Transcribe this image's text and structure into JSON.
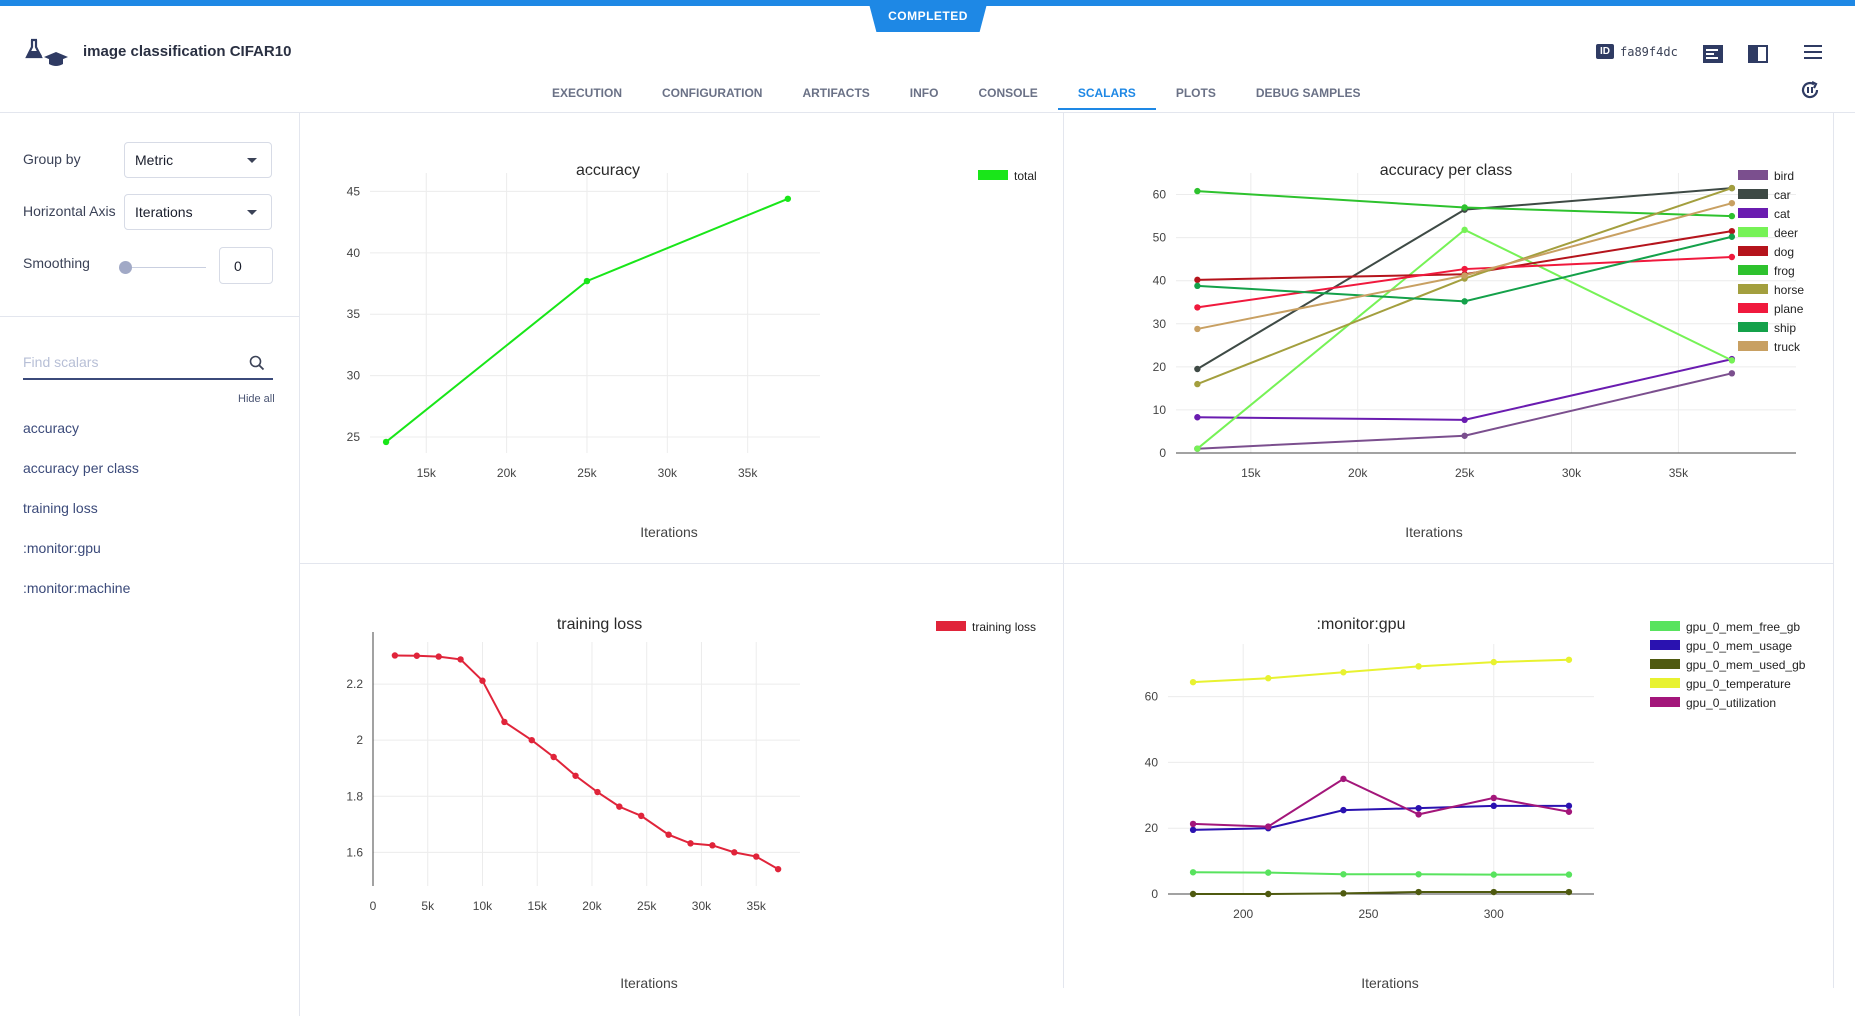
{
  "header": {
    "status": "COMPLETED",
    "title": "image classification CIFAR10",
    "id_label": "ID",
    "id_value": "fa89f4dc"
  },
  "tabs": [
    {
      "label": "EXECUTION"
    },
    {
      "label": "CONFIGURATION"
    },
    {
      "label": "ARTIFACTS"
    },
    {
      "label": "INFO"
    },
    {
      "label": "CONSOLE"
    },
    {
      "label": "SCALARS",
      "active": true
    },
    {
      "label": "PLOTS"
    },
    {
      "label": "DEBUG SAMPLES"
    }
  ],
  "sidebar": {
    "group_by_label": "Group by",
    "group_by_value": "Metric",
    "axis_label": "Horizontal Axis",
    "axis_value": "Iterations",
    "smoothing_label": "Smoothing",
    "smoothing_value": "0",
    "search_placeholder": "Find scalars",
    "hide_all": "Hide all",
    "scalars": [
      "accuracy",
      "accuracy per class",
      "training loss",
      ":monitor:gpu",
      ":monitor:machine"
    ]
  },
  "chart_data": [
    {
      "type": "line",
      "title": "accuracy",
      "xlabel": "Iterations",
      "xlim": [
        11500,
        39500
      ],
      "ylim": [
        23.7,
        46.5
      ],
      "xticks": [
        15000,
        20000,
        25000,
        30000,
        35000
      ],
      "xtick_labels": [
        "15k",
        "20k",
        "25k",
        "30k",
        "35k"
      ],
      "yticks": [
        25,
        30,
        35,
        40,
        45
      ],
      "ytick_labels": [
        "25",
        "30",
        "35",
        "40",
        "45"
      ],
      "grid": true,
      "legend_position": "top-right",
      "series": [
        {
          "name": "total",
          "color": "#19e619",
          "x": [
            12500,
            25000,
            37500
          ],
          "y": [
            24.6,
            37.7,
            44.4
          ]
        }
      ]
    },
    {
      "type": "line",
      "title": "accuracy per class",
      "xlabel": "Iterations",
      "xlim": [
        11500,
        40500
      ],
      "ylim": [
        0,
        65
      ],
      "xticks": [
        15000,
        20000,
        25000,
        30000,
        35000
      ],
      "xtick_labels": [
        "15k",
        "20k",
        "25k",
        "30k",
        "35k"
      ],
      "yticks": [
        0,
        10,
        20,
        30,
        40,
        50,
        60
      ],
      "ytick_labels": [
        "0",
        "10",
        "20",
        "30",
        "40",
        "50",
        "60"
      ],
      "grid": true,
      "legend_position": "top-right",
      "series": [
        {
          "name": "bird",
          "color": "#7b4f8e",
          "x": [
            12500,
            25000,
            37500
          ],
          "y": [
            1,
            4,
            18.5
          ]
        },
        {
          "name": "car",
          "color": "#3e4a45",
          "x": [
            12500,
            25000,
            37500
          ],
          "y": [
            19.5,
            56.5,
            61.5
          ]
        },
        {
          "name": "cat",
          "color": "#6a1cb0",
          "x": [
            12500,
            25000,
            37500
          ],
          "y": [
            8.3,
            7.7,
            21.8
          ]
        },
        {
          "name": "deer",
          "color": "#76f256",
          "x": [
            12500,
            25000,
            37500
          ],
          "y": [
            1,
            51.8,
            21.5
          ]
        },
        {
          "name": "dog",
          "color": "#b5141c",
          "x": [
            12500,
            25000,
            37500
          ],
          "y": [
            40.2,
            41.5,
            51.5
          ]
        },
        {
          "name": "frog",
          "color": "#2ec22e",
          "x": [
            12500,
            25000,
            37500
          ],
          "y": [
            60.8,
            57,
            55
          ]
        },
        {
          "name": "horse",
          "color": "#a39f3e",
          "x": [
            12500,
            25000,
            37500
          ],
          "y": [
            16,
            40.5,
            61.5
          ]
        },
        {
          "name": "plane",
          "color": "#f0193d",
          "x": [
            12500,
            25000,
            37500
          ],
          "y": [
            33.8,
            42.7,
            45.5
          ]
        },
        {
          "name": "ship",
          "color": "#14a14a",
          "x": [
            12500,
            25000,
            37500
          ],
          "y": [
            38.8,
            35.2,
            50.2
          ]
        },
        {
          "name": "truck",
          "color": "#c8a062",
          "x": [
            12500,
            25000,
            37500
          ],
          "y": [
            28.8,
            41.2,
            58
          ]
        }
      ]
    },
    {
      "type": "line",
      "title": "training loss",
      "xlabel": "Iterations",
      "xlim": [
        0,
        39000
      ],
      "ylim": [
        1.48,
        2.35
      ],
      "xticks": [
        0,
        5000,
        10000,
        15000,
        20000,
        25000,
        30000,
        35000
      ],
      "xtick_labels": [
        "0",
        "5k",
        "10k",
        "15k",
        "20k",
        "25k",
        "30k",
        "35k"
      ],
      "yticks": [
        1.6,
        1.8,
        2.0,
        2.2
      ],
      "ytick_labels": [
        "1.6",
        "1.8",
        "2",
        "2.2"
      ],
      "grid": true,
      "legend_position": "top-right",
      "series": [
        {
          "name": "training loss",
          "color": "#e0243a",
          "x": [
            2000,
            4000,
            6000,
            8000,
            10000,
            12000,
            14500,
            16500,
            18500,
            20500,
            22500,
            24500,
            27000,
            29000,
            31000,
            33000,
            35000,
            37000
          ],
          "y": [
            2.302,
            2.301,
            2.298,
            2.288,
            2.212,
            2.065,
            2.0,
            1.94,
            1.873,
            1.815,
            1.763,
            1.73,
            1.663,
            1.632,
            1.625,
            1.6,
            1.585,
            1.54
          ]
        }
      ]
    },
    {
      "type": "line",
      "title": ":monitor:gpu",
      "xlabel": "Iterations",
      "xlim": [
        170,
        340
      ],
      "ylim": [
        0,
        76
      ],
      "xticks": [
        200,
        250,
        300
      ],
      "xtick_labels": [
        "200",
        "250",
        "300"
      ],
      "yticks": [
        0,
        20,
        40,
        60
      ],
      "ytick_labels": [
        "0",
        "20",
        "40",
        "60"
      ],
      "grid": true,
      "legend_position": "top-right",
      "series": [
        {
          "name": "gpu_0_mem_free_gb",
          "color": "#58e35e",
          "x": [
            180,
            210,
            240,
            270,
            300,
            330
          ],
          "y": [
            6.6,
            6.5,
            6.0,
            6.0,
            5.9,
            5.9
          ]
        },
        {
          "name": "gpu_0_mem_usage",
          "color": "#2a12b0",
          "x": [
            180,
            210,
            240,
            270,
            300,
            330
          ],
          "y": [
            19.5,
            20,
            25.5,
            26.1,
            26.8,
            26.8
          ]
        },
        {
          "name": "gpu_0_mem_used_gb",
          "color": "#4f5a10",
          "x": [
            180,
            210,
            240,
            270,
            300,
            330
          ],
          "y": [
            0,
            0,
            0.2,
            0.6,
            0.6,
            0.6
          ]
        },
        {
          "name": "gpu_0_temperature",
          "color": "#e8f230",
          "x": [
            180,
            210,
            240,
            270,
            300,
            330
          ],
          "y": [
            64.4,
            65.6,
            67.4,
            69.2,
            70.5,
            71.2
          ]
        },
        {
          "name": "gpu_0_utilization",
          "color": "#a3167a",
          "x": [
            180,
            210,
            240,
            270,
            300,
            330
          ],
          "y": [
            21.3,
            20.5,
            35,
            24.2,
            29.2,
            25
          ]
        }
      ]
    }
  ]
}
